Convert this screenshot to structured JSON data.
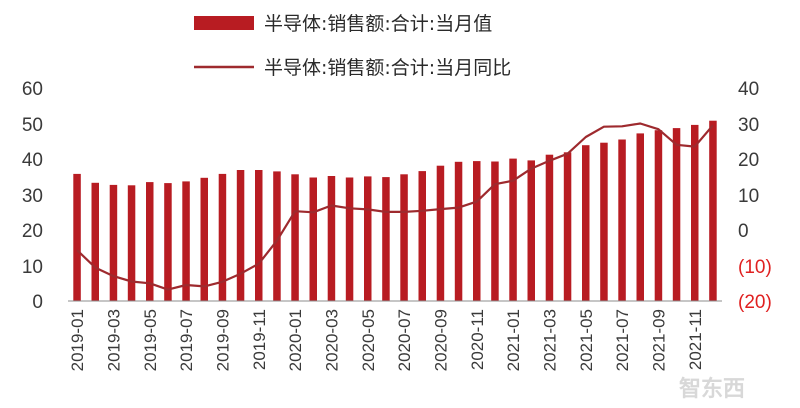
{
  "chart_data": {
    "type": "bar+line",
    "legend": {
      "bar_label": "半导体:销售额:合计:当月值",
      "line_label": "半导体:销售额:合计:当月同比"
    },
    "colors": {
      "bar": "#b81c22",
      "line": "#9e2a2e",
      "right_negative_ticks": "#e02020"
    },
    "left_axis": {
      "ylim": [
        0,
        60
      ],
      "ticks": [
        "60",
        "50",
        "40",
        "30",
        "20",
        "10",
        "0"
      ]
    },
    "right_axis": {
      "ylim": [
        -20,
        40
      ],
      "ticks": [
        "40",
        "30",
        "20",
        "10",
        "0",
        "(10)",
        "(20)"
      ]
    },
    "x_tick_labels": [
      "2019-01",
      "2019-03",
      "2019-05",
      "2019-07",
      "2019-09",
      "2019-11",
      "2020-01",
      "2020-03",
      "2020-05",
      "2020-07",
      "2020-09",
      "2020-11",
      "2021-01",
      "2021-03",
      "2021-05",
      "2021-07",
      "2021-09",
      "2021-11"
    ],
    "months": [
      "2019-01",
      "2019-02",
      "2019-03",
      "2019-04",
      "2019-05",
      "2019-06",
      "2019-07",
      "2019-08",
      "2019-09",
      "2019-10",
      "2019-11",
      "2019-12",
      "2020-01",
      "2020-02",
      "2020-03",
      "2020-04",
      "2020-05",
      "2020-06",
      "2020-07",
      "2020-08",
      "2020-09",
      "2020-10",
      "2020-11",
      "2020-12",
      "2021-01",
      "2021-02",
      "2021-03",
      "2021-04",
      "2021-05",
      "2021-06",
      "2021-07",
      "2021-08",
      "2021-09",
      "2021-10",
      "2021-11",
      "2021-12"
    ],
    "series": [
      {
        "name": "半导体:销售额:合计:当月值",
        "type": "bar",
        "axis": "left",
        "values": [
          35.8,
          33.3,
          32.7,
          32.6,
          33.5,
          33.2,
          33.7,
          34.7,
          35.8,
          36.9,
          36.9,
          36.5,
          35.7,
          34.8,
          35.2,
          34.8,
          35.1,
          34.9,
          35.7,
          36.6,
          38.1,
          39.2,
          39.4,
          39.3,
          40.1,
          39.6,
          41.2,
          41.9,
          43.9,
          44.6,
          45.5,
          47.2,
          48.1,
          48.7,
          49.6,
          50.8
        ]
      },
      {
        "name": "半导体:销售额:合计:当月同比",
        "type": "line",
        "axis": "right",
        "values": [
          -5.7,
          -10.6,
          -13.0,
          -14.5,
          -15.0,
          -16.8,
          -15.5,
          -15.9,
          -14.6,
          -12.3,
          -9.5,
          -3.0,
          5.3,
          5.0,
          6.9,
          6.1,
          5.8,
          5.1,
          5.1,
          5.4,
          5.9,
          6.3,
          8.0,
          12.9,
          13.9,
          17.3,
          19.5,
          21.5,
          26.2,
          29.1,
          29.2,
          30.0,
          28.4,
          24.0,
          23.5,
          29.5
        ]
      }
    ]
  },
  "watermark_text": "智东西"
}
